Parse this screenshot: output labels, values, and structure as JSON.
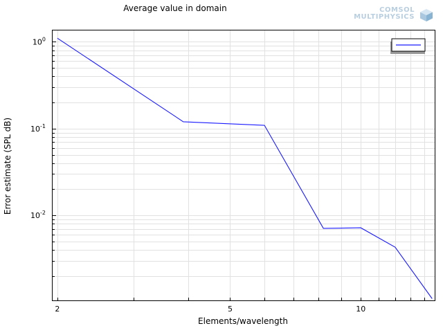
{
  "chart_data": {
    "type": "line",
    "title": "Average value in domain",
    "xlabel": "Elements/wavelength",
    "ylabel": "Error estimate (SPL dB)",
    "xscale": "log",
    "yscale": "log",
    "xlim": [
      1.95,
      14.8
    ],
    "ylim": [
      0.00105,
      1.35
    ],
    "grid": true,
    "legend": {
      "placement": "top-right",
      "entries": [
        ""
      ]
    },
    "x_ticks": [
      {
        "value": 2,
        "label": "2"
      },
      {
        "value": 5,
        "label": "5"
      },
      {
        "value": 10,
        "label": "10"
      }
    ],
    "y_ticks": [
      {
        "value": 1,
        "base": "10",
        "exp": "0"
      },
      {
        "value": 0.1,
        "base": "10",
        "exp": "-1"
      },
      {
        "value": 0.01,
        "base": "10",
        "exp": "-2"
      }
    ],
    "series": [
      {
        "color": "#1a1aff",
        "x": [
          2,
          3.9,
          6,
          8.2,
          10,
          12,
          14.6
        ],
        "y": [
          1.1,
          0.12,
          0.109,
          0.0071,
          0.0072,
          0.0043,
          0.0011
        ]
      }
    ],
    "colors": {
      "grid": "#e1e1e1",
      "axis": "#000000",
      "line": "#1a1aff"
    }
  },
  "watermark": {
    "line1": "COMSOL",
    "line2": "MULTIPHYSICS",
    "icon": "comsol-cube-icon"
  }
}
